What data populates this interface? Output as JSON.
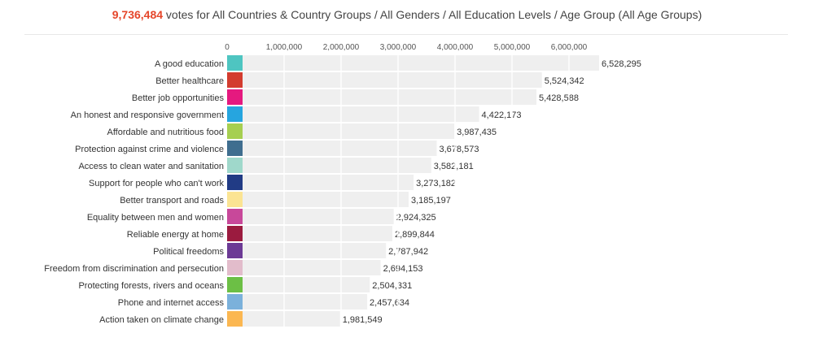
{
  "header": {
    "total_votes": "9,736,484",
    "description": "votes for All Countries & Country Groups / All Genders / All Education Levels / Age Group (All Age Groups)"
  },
  "chart_data": {
    "type": "bar",
    "orientation": "horizontal",
    "x_ticks": [
      0,
      1000000,
      2000000,
      3000000,
      4000000,
      5000000,
      6000000
    ],
    "x_tick_labels": [
      "0",
      "1,000,000",
      "2,000,000",
      "3,000,000",
      "4,000,000",
      "5,000,000",
      "6,000,000"
    ],
    "xlim": [
      0,
      7000000
    ],
    "grid": true,
    "categories": [
      "A good education",
      "Better healthcare",
      "Better job opportunities",
      "An honest and responsive government",
      "Affordable and nutritious food",
      "Protection against crime and violence",
      "Access to clean water and sanitation",
      "Support for people who can't work",
      "Better transport and roads",
      "Equality between men and women",
      "Reliable energy at home",
      "Political freedoms",
      "Freedom from discrimination and persecution",
      "Protecting forests, rivers and oceans",
      "Phone and internet access",
      "Action taken on climate change"
    ],
    "values": [
      6528295,
      5524342,
      5428588,
      4422173,
      3987435,
      3678573,
      3582181,
      3273182,
      3185197,
      2924325,
      2899844,
      2787942,
      2694153,
      2504331,
      2457634,
      1981549
    ],
    "value_labels": [
      "6,528,295",
      "5,524,342",
      "5,428,588",
      "4,422,173",
      "3,987,435",
      "3,678,573",
      "3,582,181",
      "3,273,182",
      "3,185,197",
      "2,924,325",
      "2,899,844",
      "2,787,942",
      "2,694,153",
      "2,504,331",
      "2,457,634",
      "1,981,549"
    ],
    "swatch_colors": [
      "#4ec5c1",
      "#d33c2e",
      "#e5197f",
      "#26a5df",
      "#a6cf50",
      "#3f6e8f",
      "#9fd8cb",
      "#213b85",
      "#fbe493",
      "#c8489a",
      "#9b1b3f",
      "#6c3a95",
      "#e2bccb",
      "#6cbf45",
      "#7bb1db",
      "#fbb751"
    ],
    "bar_color": "#efefef"
  }
}
